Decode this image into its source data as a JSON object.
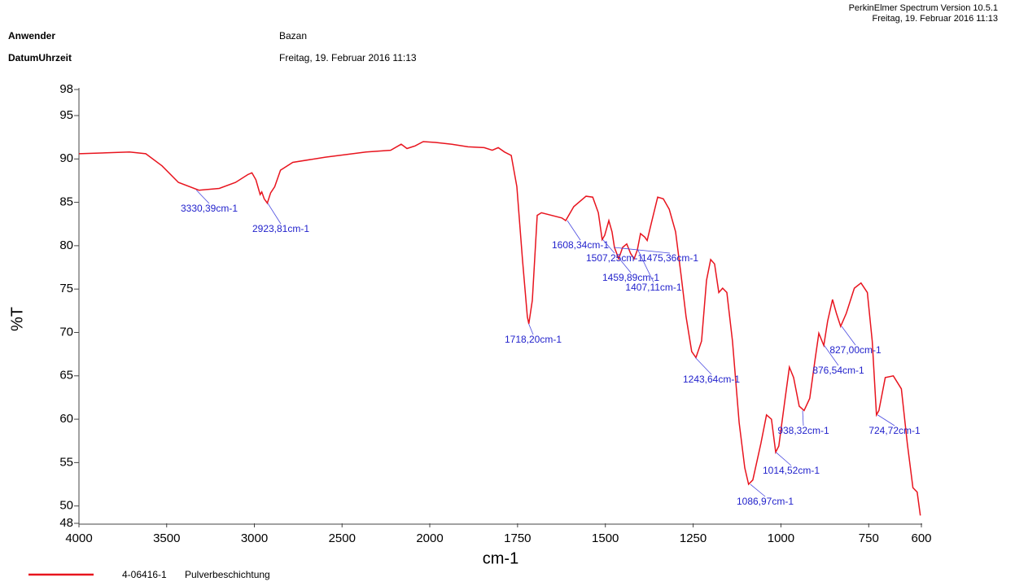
{
  "chart_data": {
    "type": "line",
    "software": "PerkinElmer Spectrum Version 10.5.1",
    "print_date": "Freitag, 19. Februar 2016 11:13",
    "info": [
      {
        "label": "Anwender",
        "value": "Bazan"
      },
      {
        "label": "DatumUhrzeit",
        "value": "Freitag, 19. Februar 2016 11:13"
      }
    ],
    "x_label": "cm-1",
    "y_label": "%T",
    "xlim": [
      4000,
      600
    ],
    "x_scale_change": 2000,
    "ylim": [
      48,
      98
    ],
    "xticks": [
      4000,
      3500,
      3000,
      2500,
      2000,
      1750,
      1500,
      1250,
      1000,
      750,
      600
    ],
    "yticks": [
      48,
      50,
      55,
      60,
      65,
      70,
      75,
      80,
      85,
      90,
      95,
      98
    ],
    "x": [
      4000,
      3712,
      3619,
      3526,
      3433,
      3316,
      3200,
      3107,
      3037,
      3014,
      2991,
      2967,
      2958,
      2944,
      2926,
      2907,
      2884,
      2851,
      2781,
      2595,
      2363,
      2223,
      2163,
      2130,
      2084,
      2037,
      1984,
      1937,
      1891,
      1845,
      1822,
      1805,
      1787,
      1768,
      1752,
      1736,
      1722,
      1718,
      1708,
      1694,
      1682,
      1624,
      1613,
      1590,
      1555,
      1536,
      1520,
      1509,
      1502,
      1490,
      1481,
      1474,
      1462,
      1451,
      1439,
      1428,
      1418,
      1409,
      1400,
      1388,
      1381,
      1369,
      1351,
      1335,
      1318,
      1300,
      1284,
      1270,
      1254,
      1242,
      1226,
      1212,
      1200,
      1189,
      1177,
      1166,
      1154,
      1138,
      1119,
      1103,
      1092,
      1080,
      1057,
      1041,
      1027,
      1015,
      1006,
      988,
      976,
      964,
      948,
      934,
      918,
      902,
      892,
      878,
      867,
      853,
      842,
      830,
      814,
      791,
      772,
      754,
      740,
      728,
      721,
      703,
      680,
      657,
      640,
      624,
      612,
      603
    ],
    "series": [
      {
        "name": "4-06416-1",
        "description": "Pulverbeschichtung",
        "color": "#e8141e",
        "values": [
          90.6,
          90.8,
          90.6,
          89.2,
          87.3,
          86.4,
          86.6,
          87.3,
          88.2,
          88.4,
          87.6,
          85.9,
          86.2,
          85.4,
          84.9,
          86.1,
          86.8,
          88.7,
          89.6,
          90.2,
          90.8,
          91.0,
          91.7,
          91.2,
          91.5,
          92.0,
          91.9,
          91.7,
          91.4,
          91.3,
          91.0,
          91.3,
          90.8,
          90.4,
          86.8,
          78.4,
          71.8,
          71.0,
          73.7,
          83.5,
          83.8,
          83.2,
          82.9,
          84.5,
          85.7,
          85.6,
          83.8,
          80.7,
          81.2,
          82.9,
          81.6,
          79.8,
          78.5,
          79.8,
          80.2,
          79.1,
          78.5,
          79.5,
          81.4,
          81.0,
          80.6,
          82.6,
          85.6,
          85.4,
          84.2,
          81.6,
          76.5,
          71.8,
          67.8,
          67.1,
          69.0,
          76.0,
          78.4,
          77.9,
          74.6,
          75.1,
          74.6,
          69.0,
          59.6,
          54.4,
          52.5,
          53.0,
          57.2,
          60.5,
          60.0,
          56.2,
          56.9,
          62.4,
          66.0,
          64.8,
          61.5,
          61.0,
          62.4,
          67.1,
          69.9,
          68.5,
          71.3,
          73.8,
          72.2,
          70.7,
          72.2,
          75.1,
          75.7,
          74.6,
          69.0,
          60.5,
          61.0,
          64.8,
          65.0,
          63.5,
          57.2,
          52.1,
          51.6,
          48.9
        ]
      }
    ],
    "annotations": [
      {
        "label": "3330,39cm-1",
        "x": 3330.39,
        "y": 86.4
      },
      {
        "label": "2923,81cm-1",
        "x": 2923.81,
        "y": 84.9
      },
      {
        "label": "1718,20cm-1",
        "x": 1718.2,
        "y": 71.0
      },
      {
        "label": "1608,34cm-1",
        "x": 1608.34,
        "y": 82.9
      },
      {
        "label": "1507,25cm-1",
        "x": 1507.25,
        "y": 80.7
      },
      {
        "label": "1475,36cm-1",
        "x": 1475.36,
        "y": 79.8
      },
      {
        "label": "1459,89cm-1",
        "x": 1459.89,
        "y": 78.5
      },
      {
        "label": "1407,11cm-1",
        "x": 1407.11,
        "y": 79.5
      },
      {
        "label": "1243,64cm-1",
        "x": 1243.64,
        "y": 67.1
      },
      {
        "label": "1086,97cm-1",
        "x": 1086.97,
        "y": 52.5
      },
      {
        "label": "1014,52cm-1",
        "x": 1014.52,
        "y": 56.2
      },
      {
        "label": "938,32cm-1",
        "x": 938.32,
        "y": 61.0
      },
      {
        "label": "876,54cm-1",
        "x": 876.54,
        "y": 68.5
      },
      {
        "label": "827,00cm-1",
        "x": 827.0,
        "y": 70.7
      },
      {
        "label": "724,72cm-1",
        "x": 724.72,
        "y": 60.5
      }
    ]
  }
}
